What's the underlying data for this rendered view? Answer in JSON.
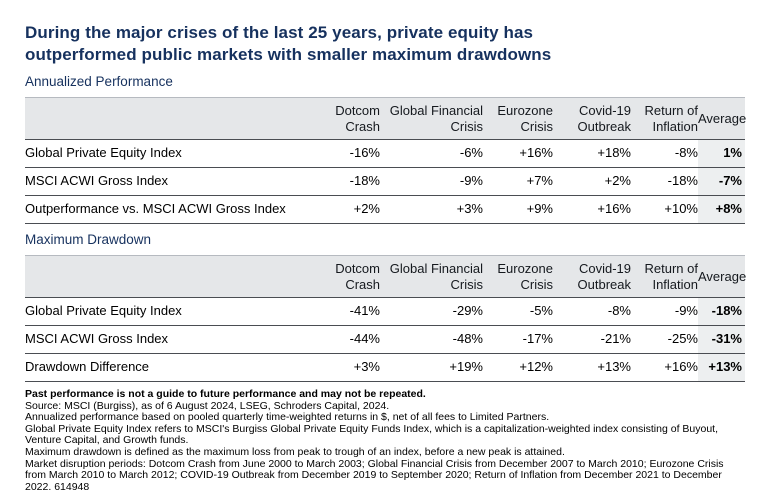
{
  "title": "During the major crises of the last 25 years, private equity has outperformed public markets with smaller maximum drawdowns",
  "colors": {
    "title_navy": "#16315e",
    "header_bg": "#e5e7e9",
    "average_column_bg": "#edeff0",
    "row_border": "#4a4d52"
  },
  "tables": [
    {
      "section_label": "Annualized Performance",
      "columns": [
        "Dotcom Crash",
        "Global Financial Crisis",
        "Eurozone Crisis",
        "Covid-19 Outbreak",
        "Return of Inflation",
        "Average"
      ],
      "rows": [
        {
          "label": "Global Private Equity Index",
          "values": [
            "-16%",
            "-6%",
            "+16%",
            "+18%",
            "-8%",
            "1%"
          ]
        },
        {
          "label": "MSCI ACWI Gross Index",
          "values": [
            "-18%",
            "-9%",
            "+7%",
            "+2%",
            "-18%",
            "-7%"
          ]
        },
        {
          "label": "Outperformance vs. MSCI ACWI Gross Index",
          "values": [
            "+2%",
            "+3%",
            "+9%",
            "+16%",
            "+10%",
            "+8%"
          ]
        }
      ]
    },
    {
      "section_label": "Maximum Drawdown",
      "columns": [
        "Dotcom Crash",
        "Global Financial Crisis",
        "Eurozone Crisis",
        "Covid-19 Outbreak",
        "Return of Inflation",
        "Average"
      ],
      "rows": [
        {
          "label": "Global Private Equity Index",
          "values": [
            "-41%",
            "-29%",
            "-5%",
            "-8%",
            "-9%",
            "-18%"
          ]
        },
        {
          "label": "MSCI ACWI Gross Index",
          "values": [
            "-44%",
            "-48%",
            "-17%",
            "-21%",
            "-25%",
            "-31%"
          ]
        },
        {
          "label": "Drawdown Difference",
          "values": [
            "+3%",
            "+19%",
            "+12%",
            "+13%",
            "+16%",
            "+13%"
          ]
        }
      ]
    }
  ],
  "footnotes": [
    "Past performance is not a guide to future performance and may not be repeated.",
    "Source: MSCI (Burgiss), as of 6 August 2024, LSEG, Schroders Capital, 2024.",
    "Annualized performance based on pooled quarterly time-weighted returns in $, net of all fees to Limited Partners.",
    "Global Private Equity Index refers to MSCI's Burgiss Global Private Equity Funds Index, which is a capitalization-weighted index consisting of Buyout, Venture Capital, and Growth funds.",
    "Maximum drawdown is defined as the maximum loss from peak to trough of an index, before a new peak is attained.",
    "Market disruption periods: Dotcom Crash from June 2000 to March 2003; Global Financial Crisis from December 2007 to March 2010; Eurozone Crisis from March 2010 to March 2012; COVID-19 Outbreak from December 2019 to September 2020; Return of Inflation from December 2021 to December 2022. 614948"
  ]
}
